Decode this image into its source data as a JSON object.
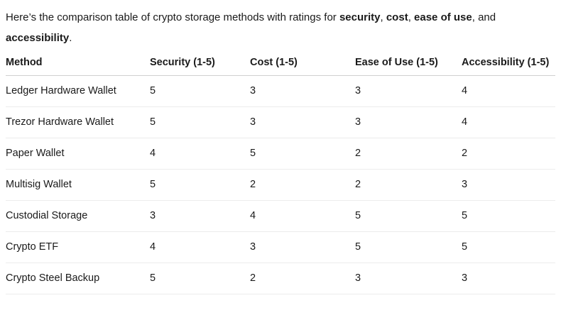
{
  "intro": {
    "segments": [
      {
        "text": "Here’s the comparison table of crypto storage methods with ratings for ",
        "bold": false
      },
      {
        "text": "security",
        "bold": true
      },
      {
        "text": ", ",
        "bold": false
      },
      {
        "text": "cost",
        "bold": true
      },
      {
        "text": ", ",
        "bold": false
      },
      {
        "text": "ease of use",
        "bold": true
      },
      {
        "text": ", and ",
        "bold": false
      },
      {
        "text": "accessibility",
        "bold": true
      },
      {
        "text": ".",
        "bold": false
      }
    ]
  },
  "table": {
    "columns": [
      "Method",
      "Security (1-5)",
      "Cost (1-5)",
      "Ease of Use (1-5)",
      "Accessibility (1-5)"
    ],
    "rows": [
      {
        "method": "Ledger Hardware Wallet",
        "security": "5",
        "cost": "3",
        "ease_of_use": "3",
        "accessibility": "4"
      },
      {
        "method": "Trezor Hardware Wallet",
        "security": "5",
        "cost": "3",
        "ease_of_use": "3",
        "accessibility": "4"
      },
      {
        "method": "Paper Wallet",
        "security": "4",
        "cost": "5",
        "ease_of_use": "2",
        "accessibility": "2"
      },
      {
        "method": "Multisig Wallet",
        "security": "5",
        "cost": "2",
        "ease_of_use": "2",
        "accessibility": "3"
      },
      {
        "method": "Custodial Storage",
        "security": "3",
        "cost": "4",
        "ease_of_use": "5",
        "accessibility": "5"
      },
      {
        "method": "Crypto ETF",
        "security": "4",
        "cost": "3",
        "ease_of_use": "5",
        "accessibility": "5"
      },
      {
        "method": "Crypto Steel Backup",
        "security": "5",
        "cost": "2",
        "ease_of_use": "3",
        "accessibility": "3"
      }
    ]
  },
  "colors": {
    "background": "#ffffff",
    "text": "#1a1a1a",
    "header_border": "#d0d0d0",
    "row_border": "#ececec"
  }
}
